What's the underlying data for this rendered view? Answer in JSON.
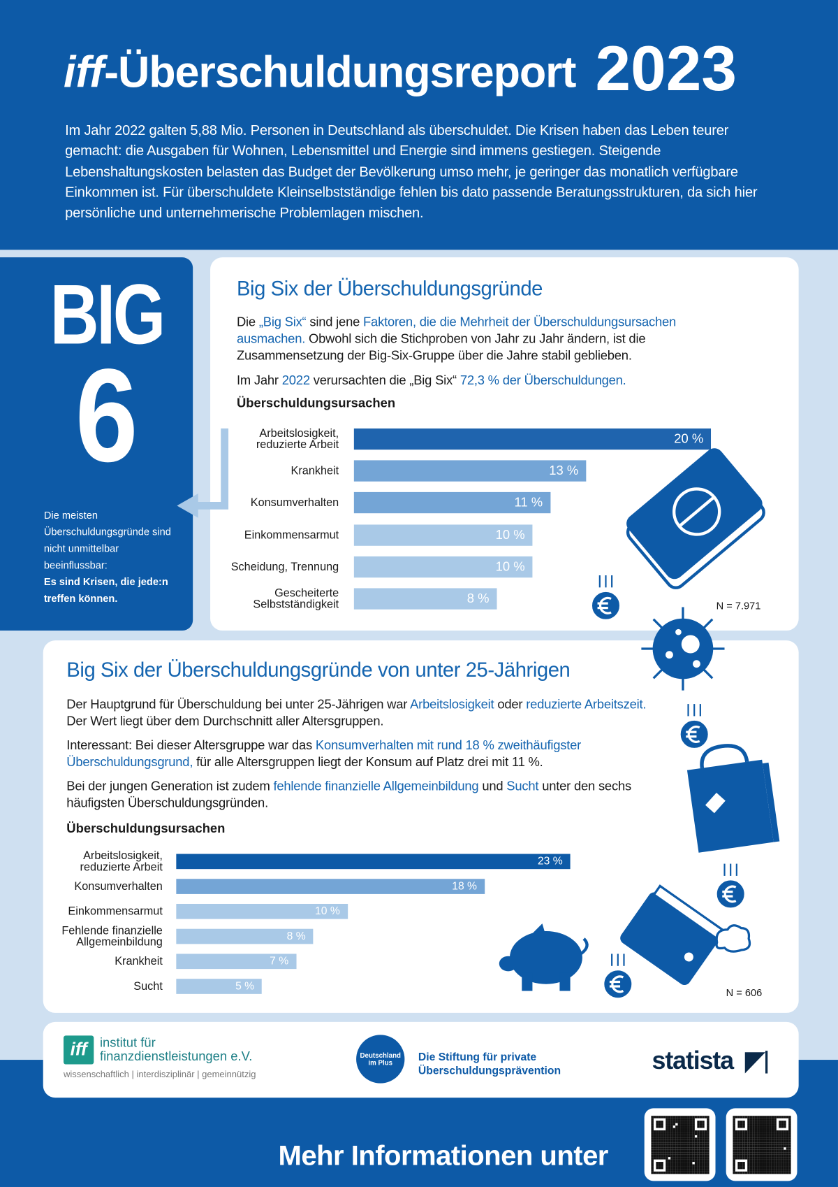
{
  "header": {
    "title_italic": "iff",
    "title": "-Überschuldungsreport",
    "year": "2023",
    "intro": "Im Jahr 2022 galten 5,88 Mio. Personen in Deutschland als überschuldet. Die Krisen haben das Leben teurer gemacht: die Ausgaben für Wohnen, Lebensmittel und Energie sind immens gestiegen. Steigende Lebenshaltungskosten belasten das Budget der Bevölkerung umso mehr, je geringer das monatlich verfügbare Einkommen ist. Für überschuldete Kleinselbstständige fehlen bis dato passende Beratungsstrukturen, da sich hier persönliche und unternehmerische Problemlagen mischen."
  },
  "big6": {
    "big": "BIG",
    "six": "6",
    "note": "Die meisten Überschuldungsgründe sind nicht unmittelbar beeinflussbar:",
    "note_bold": "Es sind Krisen, die jede:n treffen können."
  },
  "section1": {
    "heading": "Big Six der Überschuldungsgründe",
    "para1": [
      "Die ",
      "„Big Six“",
      " sind jene ",
      "Faktoren, die die Mehrheit der Überschuldungsursachen ausmachen.",
      " Obwohl sich die Stichproben von Jahr zu Jahr ändern, ist die Zusammensetzung der Big-Six-Gruppe über die Jahre stabil geblieben."
    ],
    "para2": [
      "Im Jahr ",
      "2022",
      " verursachten die „Big Six“ ",
      "72,3 % der Überschuldungen."
    ]
  },
  "section2": {
    "heading": "Big Six der Überschuldungsgründe von unter 25-Jährigen",
    "para1": [
      "Der Hauptgrund für Überschuldung bei unter 25-Jährigen war ",
      "Arbeitslosigkeit",
      " oder ",
      "reduzierte Arbeitszeit.",
      " Der Wert liegt über dem Durchschnitt aller Altersgruppen."
    ],
    "para2": [
      "Interessant: Bei dieser Altersgruppe war das ",
      "Konsumverhalten mit rund 18 % zweithäufigster Überschuldungsgrund,",
      " für alle Altersgruppen liegt der Konsum auf Platz drei mit 11 %."
    ],
    "para3": [
      "Bei der jungen Generation ist zudem ",
      "fehlende finanzielle Allgemeinbildung",
      " und ",
      "Sucht",
      " unter den sechs häufigsten Überschuldungsgründen."
    ]
  },
  "chart_data": [
    {
      "type": "bar",
      "orientation": "horizontal",
      "title": "Überschuldungsursachen",
      "categories": [
        "Arbeitslosigkeit,\nreduzierte Arbeit",
        "Krankheit",
        "Konsumverhalten",
        "Einkommensarmut",
        "Scheidung, Trennung",
        "Gescheiterte\nSelbstständigkeit"
      ],
      "values": [
        20,
        13,
        11,
        10,
        10,
        8
      ],
      "value_labels": [
        "20 %",
        "13 %",
        "11 %",
        "10 %",
        "10 %",
        "8 %"
      ],
      "colors": [
        "#1f64ae",
        "#74a5d6",
        "#74a5d6",
        "#a9c9e7",
        "#a9c9e7",
        "#a9c9e7"
      ],
      "annotation": "N = 7.971"
    },
    {
      "type": "bar",
      "orientation": "horizontal",
      "title": "Überschuldungsursachen",
      "categories": [
        "Arbeitslosigkeit,\nreduzierte Arbeit",
        "Konsumverhalten",
        "Einkommensarmut",
        "Fehlende finanzielle\nAllgemeinbildung",
        "Krankheit",
        "Sucht"
      ],
      "values": [
        23,
        18,
        10,
        8,
        7,
        5
      ],
      "value_labels": [
        "23 %",
        "18 %",
        "10 %",
        "8 %",
        "7 %",
        "5 %"
      ],
      "colors": [
        "#0d5aa7",
        "#74a5d6",
        "#a9c9e7",
        "#a9c9e7",
        "#a9c9e7",
        "#a9c9e7"
      ],
      "annotation": "N = 606"
    }
  ],
  "logos": {
    "iff_mark": "iff",
    "iff_name": "institut für finanzdienstleistungen e.V.",
    "iff_claim": "wissenschaftlich | interdisziplinär | gemeinnützig",
    "plus_badge": "Deutschland im Plus",
    "plus_name": "Die Stiftung für private Überschuldungsprävention",
    "statista": "statista"
  },
  "footer": {
    "more": "Mehr Informationen unter"
  }
}
